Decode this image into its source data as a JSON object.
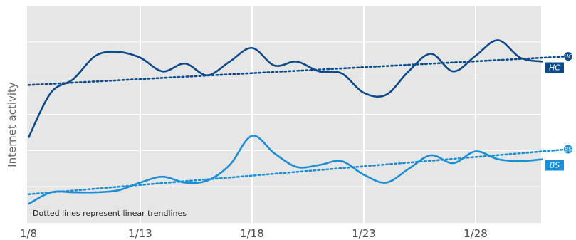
{
  "chart_data": {
    "type": "line",
    "ylabel": "Internet activity",
    "note": "Dotted lines represent linear trendlines",
    "x": [
      "1/8",
      "1/9",
      "1/10",
      "1/11",
      "1/12",
      "1/13",
      "1/14",
      "1/15",
      "1/16",
      "1/17",
      "1/18",
      "1/19",
      "1/20",
      "1/21",
      "1/22",
      "1/23",
      "1/24",
      "1/25",
      "1/26",
      "1/27",
      "1/28",
      "1/29",
      "1/30",
      "1/31"
    ],
    "xticks": [
      "1/8",
      "1/13",
      "1/18",
      "1/23",
      "1/28"
    ],
    "ylim": [
      0,
      100
    ],
    "grid": true,
    "series": [
      {
        "name": "HC",
        "color": "#0d4a8a",
        "values": [
          36,
          59,
          66,
          78,
          80,
          77,
          70,
          74,
          68,
          75,
          82,
          73,
          75,
          70,
          69,
          59,
          58,
          70,
          79,
          70,
          78,
          86,
          77,
          75
        ],
        "trend": [
          63,
          77
        ]
      },
      {
        "name": "BS",
        "color": "#1a8fd6",
        "values": [
          2,
          8,
          8,
          8,
          9,
          13,
          16,
          13,
          14,
          22,
          37,
          28,
          21,
          22,
          24,
          17,
          13,
          20,
          27,
          23,
          29,
          25,
          24,
          25
        ],
        "trend": [
          7,
          29
        ]
      }
    ]
  },
  "colors": {
    "plot_bg": "#e6e6e6",
    "grid": "#ffffff",
    "trend": "dotted"
  }
}
